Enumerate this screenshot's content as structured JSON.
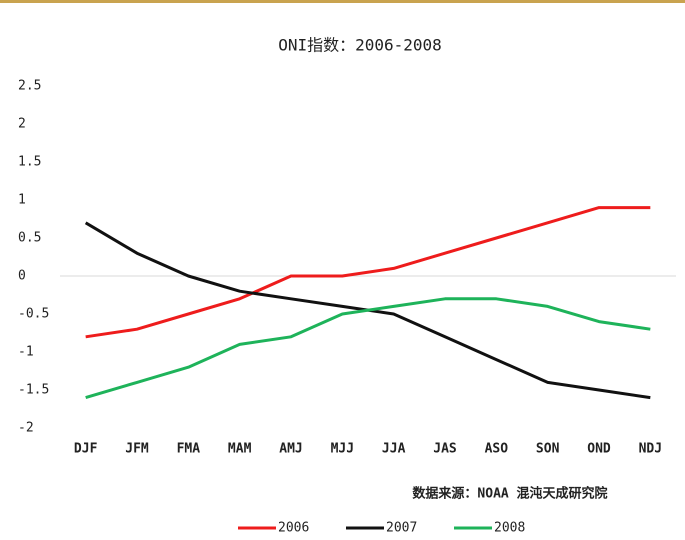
{
  "chart_data": {
    "type": "line",
    "title": "ONI指数：2006-2008",
    "categories": [
      "DJF",
      "JFM",
      "FMA",
      "MAM",
      "AMJ",
      "MJJ",
      "JJA",
      "JAS",
      "ASO",
      "SON",
      "OND",
      "NDJ"
    ],
    "series": [
      {
        "name": "2006",
        "color": "#ee1c1c",
        "values": [
          -0.8,
          -0.7,
          -0.5,
          -0.3,
          0.0,
          0.0,
          0.1,
          0.3,
          0.5,
          0.7,
          0.9,
          0.9
        ]
      },
      {
        "name": "2007",
        "color": "#111111",
        "values": [
          0.7,
          0.3,
          0.0,
          -0.2,
          -0.3,
          -0.4,
          -0.5,
          -0.8,
          -1.1,
          -1.4,
          -1.5,
          -1.6
        ]
      },
      {
        "name": "2008",
        "color": "#1eb35a",
        "values": [
          -1.6,
          -1.4,
          -1.2,
          -0.9,
          -0.8,
          -0.5,
          -0.4,
          -0.3,
          -0.3,
          -0.4,
          -0.6,
          -0.7
        ]
      }
    ],
    "ylim": [
      -2,
      2.5
    ],
    "yticks": [
      -2,
      -1.5,
      -1,
      -0.5,
      0,
      0.5,
      1,
      1.5,
      2,
      2.5
    ],
    "grid": false,
    "zero_line": true,
    "legend": "bottom",
    "annotation": "数据来源：NOAA 混沌天成研究院"
  }
}
